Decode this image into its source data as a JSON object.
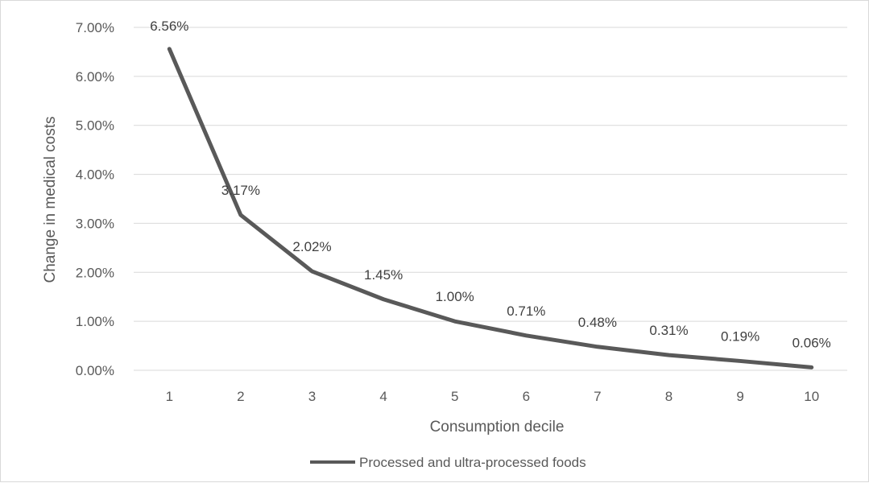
{
  "chart_data": {
    "type": "line",
    "title": "",
    "xlabel": "Consumption decile",
    "ylabel": "Change in medical costs",
    "categories": [
      "1",
      "2",
      "3",
      "4",
      "5",
      "6",
      "7",
      "8",
      "9",
      "10"
    ],
    "series": [
      {
        "name": "Processed and ultra-processed foods",
        "values": [
          6.56,
          3.17,
          2.02,
          1.45,
          1.0,
          0.71,
          0.48,
          0.31,
          0.19,
          0.06
        ],
        "data_labels": [
          "6.56%",
          "3.17%",
          "2.02%",
          "1.45%",
          "1.00%",
          "0.71%",
          "0.48%",
          "0.31%",
          "0.19%",
          "0.06%"
        ],
        "color": "#595959"
      }
    ],
    "y_ticks": [
      0,
      1,
      2,
      3,
      4,
      5,
      6,
      7
    ],
    "y_tick_labels": [
      "0.00%",
      "1.00%",
      "2.00%",
      "3.00%",
      "4.00%",
      "5.00%",
      "6.00%",
      "7.00%"
    ],
    "ylim": [
      0,
      7
    ],
    "grid": true,
    "legend_position": "bottom",
    "colors": {
      "gridline": "#d9d9d9",
      "line": "#595959"
    }
  }
}
